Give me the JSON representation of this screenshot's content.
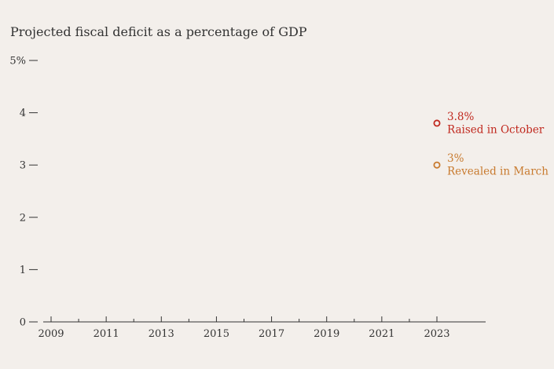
{
  "chart_data": {
    "type": "scatter",
    "title": "Projected fiscal deficit as a percentage of GDP",
    "xlabel": "",
    "ylabel": "",
    "xlim": [
      2008.7,
      2024.8
    ],
    "ylim": [
      0,
      5
    ],
    "y_ticks": [
      {
        "value": 0,
        "label": "0"
      },
      {
        "value": 1,
        "label": "1"
      },
      {
        "value": 2,
        "label": "2"
      },
      {
        "value": 3,
        "label": "3"
      },
      {
        "value": 4,
        "label": "4"
      },
      {
        "value": 5,
        "label": "5%"
      }
    ],
    "x_major_ticks": [
      2009,
      2011,
      2013,
      2015,
      2017,
      2019,
      2021,
      2023
    ],
    "x_minor_ticks": [
      2010,
      2012,
      2014,
      2016,
      2018,
      2020,
      2022
    ],
    "grid": false,
    "series": [
      {
        "x": 2023,
        "y": 3.8,
        "value_label": "3.8%",
        "label": "Raised in October",
        "color": "#c0281e"
      },
      {
        "x": 2023,
        "y": 3.0,
        "value_label": "3%",
        "label": "Revealed in March",
        "color": "#c87a2e"
      }
    ]
  }
}
